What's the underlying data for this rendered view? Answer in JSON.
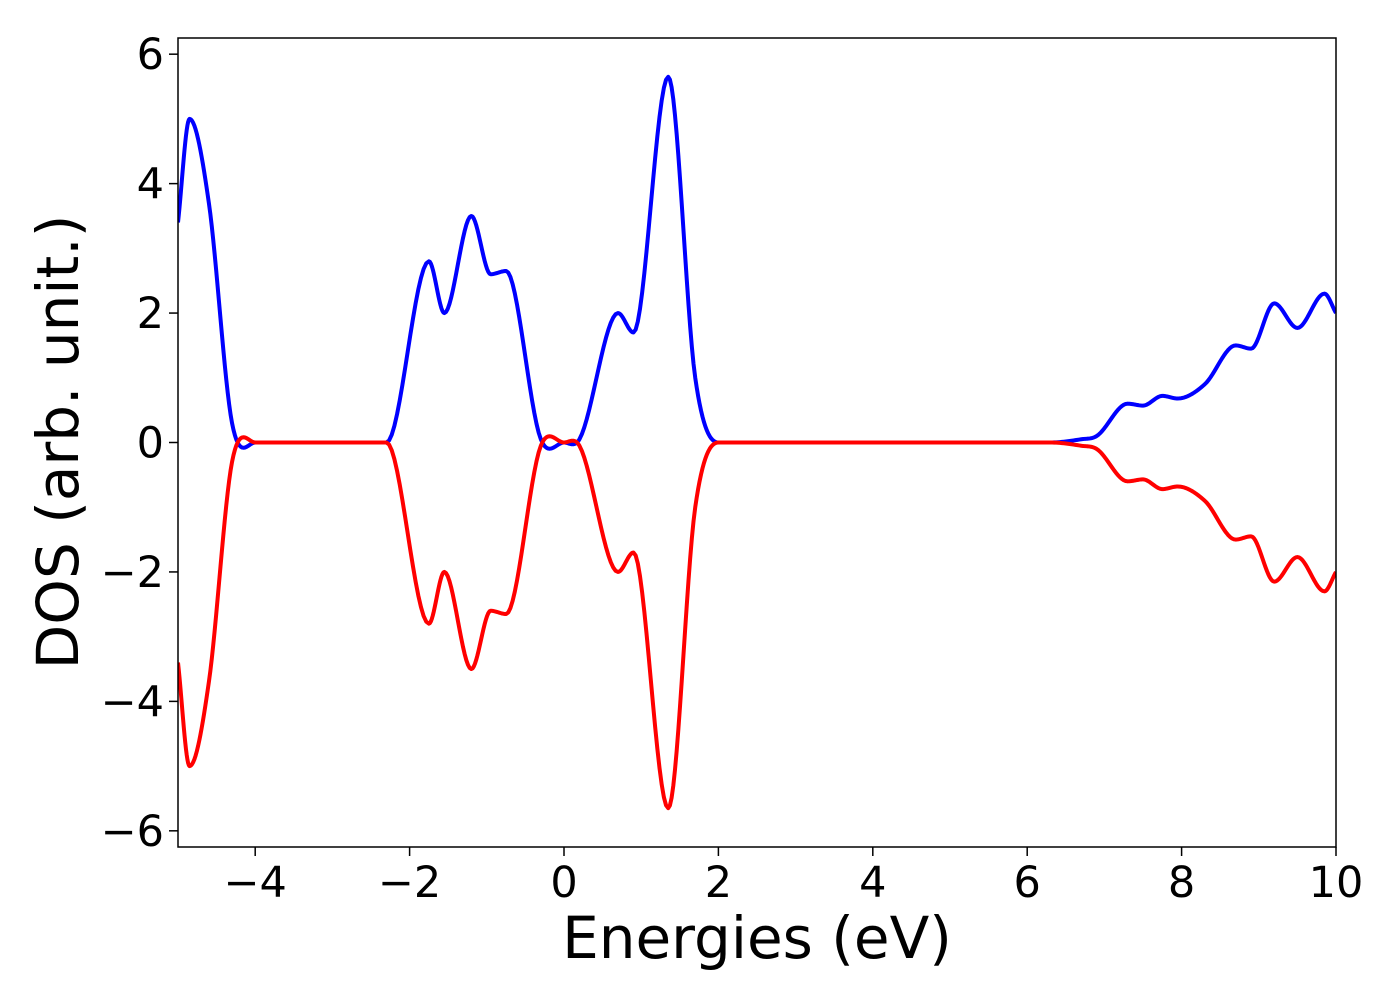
{
  "chart_data": {
    "type": "line",
    "title": "",
    "xlabel": "Energies (eV)",
    "ylabel": "DOS (arb. unit.)",
    "xlim": [
      -5,
      10
    ],
    "ylim": [
      -6.25,
      6.25
    ],
    "xticks": [
      -4,
      -2,
      0,
      2,
      4,
      6,
      8,
      10
    ],
    "xtick_labels": [
      "−4",
      "−2",
      "0",
      "2",
      "4",
      "6",
      "8",
      "10"
    ],
    "yticks": [
      -6,
      -4,
      -2,
      0,
      2,
      4,
      6
    ],
    "ytick_labels": [
      "−6",
      "−4",
      "−2",
      "0",
      "2",
      "4",
      "6"
    ],
    "grid": false,
    "legend": "none",
    "series": [
      {
        "color": "#0000ff",
        "x": [
          -5.0,
          -4.85,
          -4.6,
          -4.3,
          -4.0,
          -2.3,
          -1.75,
          -1.55,
          -1.2,
          -0.95,
          -0.75,
          -0.3,
          0.0,
          0.2,
          0.7,
          0.9,
          1.35,
          1.7,
          2.0,
          6.3,
          6.7,
          6.9,
          7.3,
          7.5,
          7.75,
          7.95,
          8.3,
          8.7,
          8.9,
          9.2,
          9.5,
          9.85,
          10.0
        ],
        "y": [
          3.4,
          5.0,
          3.7,
          0.3,
          0.0,
          0.0,
          2.8,
          2.0,
          3.5,
          2.6,
          2.65,
          0.05,
          0.0,
          0.05,
          2.0,
          1.7,
          5.65,
          1.0,
          0.0,
          0.0,
          0.05,
          0.1,
          0.6,
          0.57,
          0.72,
          0.68,
          0.9,
          1.5,
          1.45,
          2.15,
          1.77,
          2.3,
          2.0
        ]
      },
      {
        "color": "#ff0000",
        "x": [
          -5.0,
          -4.85,
          -4.6,
          -4.3,
          -4.0,
          -2.3,
          -1.75,
          -1.55,
          -1.2,
          -0.95,
          -0.75,
          -0.3,
          0.0,
          0.2,
          0.7,
          0.9,
          1.35,
          1.7,
          2.0,
          6.3,
          6.7,
          6.9,
          7.3,
          7.5,
          7.75,
          7.95,
          8.3,
          8.7,
          8.9,
          9.2,
          9.5,
          9.85,
          10.0
        ],
        "y": [
          -3.4,
          -5.0,
          -3.7,
          -0.3,
          0.0,
          0.0,
          -2.8,
          -2.0,
          -3.5,
          -2.6,
          -2.65,
          -0.05,
          0.0,
          -0.05,
          -2.0,
          -1.7,
          -5.65,
          -1.0,
          0.0,
          0.0,
          -0.05,
          -0.1,
          -0.6,
          -0.57,
          -0.72,
          -0.68,
          -0.9,
          -1.5,
          -1.45,
          -2.15,
          -1.77,
          -2.3,
          -2.0
        ]
      }
    ]
  }
}
